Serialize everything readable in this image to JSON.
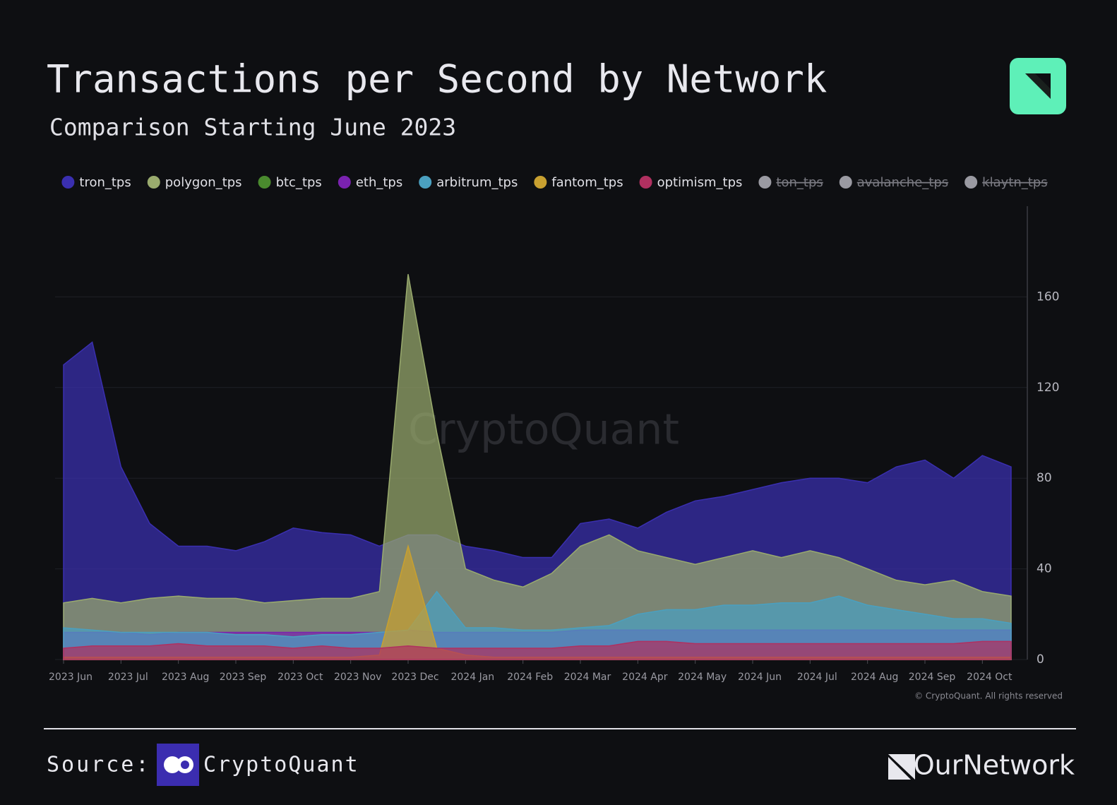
{
  "chart_data": {
    "type": "area",
    "title": "Transactions per Second by Network",
    "subtitle": "Comparison Starting June 2023",
    "categories": [
      "2023 Jun",
      null,
      "2023 Jul",
      null,
      "2023 Aug",
      null,
      "2023 Sep",
      null,
      "2023 Oct",
      null,
      "2023 Nov",
      null,
      "2023 Dec",
      null,
      "2024 Jan",
      null,
      "2024 Feb",
      null,
      "2024 Mar",
      null,
      "2024 Apr",
      null,
      "2024 May",
      null,
      "2024 Jun",
      null,
      "2024 Jul",
      null,
      "2024 Aug",
      null,
      "2024 Sep",
      null,
      "2024 Oct",
      null
    ],
    "series": [
      {
        "name": "tron_tps",
        "color": "#3a2fb0",
        "values": [
          130,
          140,
          85,
          60,
          50,
          50,
          48,
          52,
          58,
          56,
          55,
          50,
          55,
          55,
          50,
          48,
          45,
          45,
          60,
          62,
          58,
          65,
          70,
          72,
          75,
          78,
          80,
          80,
          78,
          85,
          88,
          80,
          90,
          85
        ]
      },
      {
        "name": "polygon_tps",
        "color": "#9aab6e",
        "values": [
          25,
          27,
          25,
          27,
          28,
          27,
          27,
          25,
          26,
          27,
          27,
          30,
          170,
          100,
          40,
          35,
          32,
          38,
          50,
          55,
          48,
          45,
          42,
          45,
          48,
          45,
          48,
          45,
          40,
          35,
          33,
          35,
          30,
          28
        ]
      },
      {
        "name": "btc_tps",
        "color": "#4a8a2e",
        "values": [
          5,
          5,
          5,
          4,
          5,
          5,
          4,
          5,
          5,
          5,
          5,
          5,
          6,
          5,
          5,
          5,
          5,
          5,
          5,
          6,
          5,
          5,
          5,
          5,
          5,
          5,
          5,
          5,
          5,
          5,
          5,
          5,
          5,
          5
        ]
      },
      {
        "name": "eth_tps",
        "color": "#7a22b0",
        "values": [
          12,
          12,
          12,
          11,
          12,
          12,
          12,
          12,
          12,
          12,
          12,
          12,
          13,
          12,
          12,
          12,
          12,
          12,
          13,
          13,
          13,
          13,
          13,
          13,
          13,
          13,
          13,
          13,
          13,
          13,
          13,
          13,
          13,
          13
        ]
      },
      {
        "name": "arbitrum_tps",
        "color": "#4aa0c0",
        "values": [
          14,
          13,
          12,
          12,
          12,
          12,
          11,
          11,
          10,
          11,
          11,
          12,
          13,
          30,
          14,
          14,
          13,
          13,
          14,
          15,
          20,
          22,
          22,
          24,
          24,
          25,
          25,
          28,
          24,
          22,
          20,
          18,
          18,
          16
        ]
      },
      {
        "name": "fantom_tps",
        "color": "#c8a030",
        "values": [
          1,
          1,
          1,
          1,
          1,
          1,
          1,
          1,
          1,
          1,
          1,
          2,
          50,
          5,
          2,
          1,
          1,
          1,
          1,
          1,
          1,
          1,
          1,
          1,
          1,
          1,
          1,
          1,
          1,
          1,
          1,
          1,
          1,
          1
        ]
      },
      {
        "name": "optimism_tps",
        "color": "#b03060",
        "values": [
          5,
          6,
          6,
          6,
          7,
          6,
          6,
          6,
          5,
          6,
          5,
          5,
          6,
          5,
          5,
          5,
          5,
          5,
          6,
          6,
          8,
          8,
          7,
          7,
          7,
          7,
          7,
          7,
          7,
          7,
          7,
          7,
          8,
          8
        ]
      }
    ],
    "hidden_series": [
      "ton_tps",
      "avalanche_tps",
      "klaytn_tps"
    ],
    "hidden_color": "#9a9aa2",
    "ylim": [
      0,
      200
    ],
    "yticks": [
      0,
      40,
      80,
      120,
      160
    ],
    "grid": true,
    "watermark": "CryptoQuant",
    "copyright": "© CryptoQuant. All rights reserved",
    "source_label": "Source:",
    "source_name": "CryptoQuant",
    "brand": "OurNetwork"
  }
}
